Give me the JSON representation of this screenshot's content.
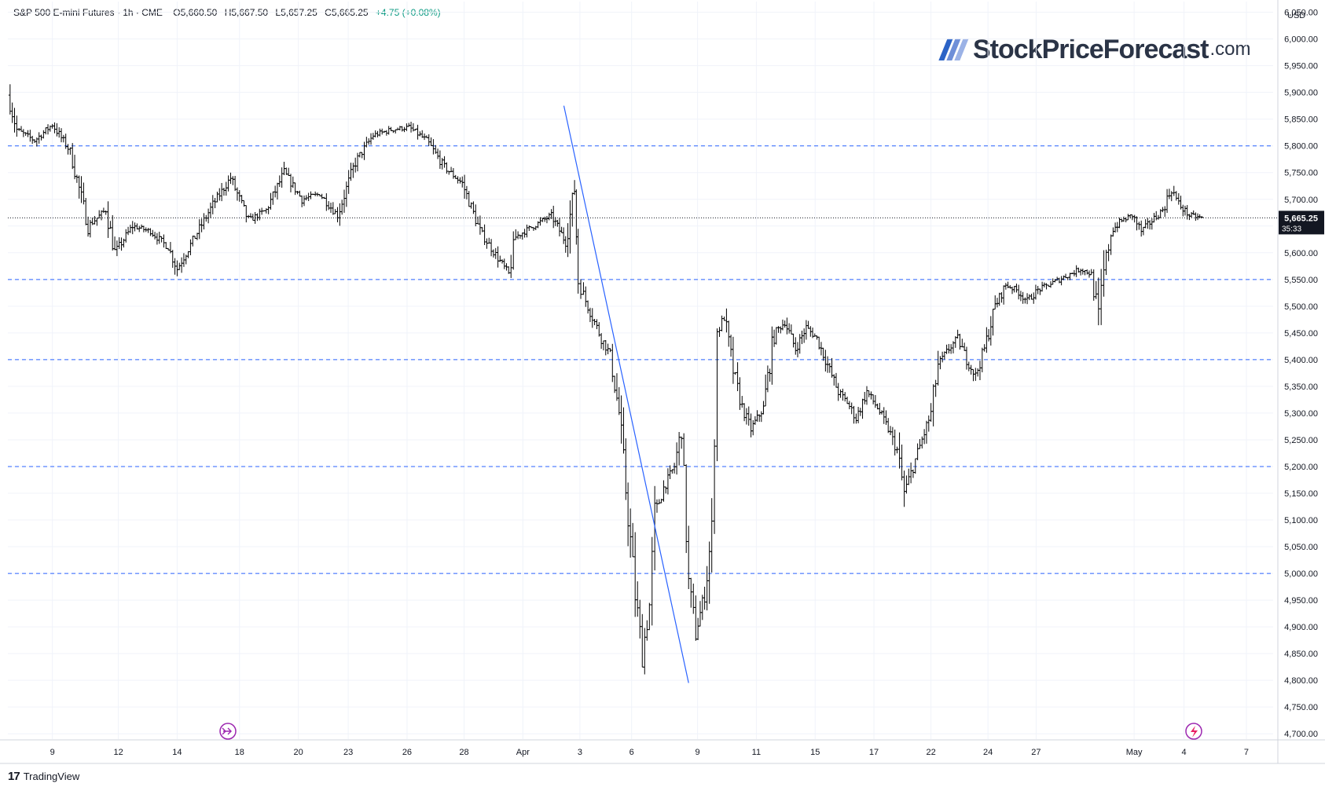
{
  "header": {
    "symbol": "S&P 500 E-mini Futures",
    "interval": "1h",
    "exchange": "CME",
    "open_label": "O",
    "open": "5,660.50",
    "high_label": "H",
    "high": "5,667.50",
    "low_label": "L",
    "low": "5,657.25",
    "close_label": "C",
    "close": "5,665.25",
    "change": "+4.75 (+0.08%)"
  },
  "brand": {
    "name": "StockPriceForecast",
    "tld": ".com",
    "colors": [
      "#2b63c6",
      "#6e8fd8",
      "#9bb2e6"
    ]
  },
  "footer": {
    "logo_mark": "17",
    "logo_text": "TradingView"
  },
  "chart_data": {
    "type": "candlestick",
    "currency": "USD",
    "ylim": [
      4690,
      6070
    ],
    "y_ticks": [
      6050,
      6000,
      5950,
      5900,
      5850,
      5800,
      5750,
      5700,
      5650,
      5600,
      5550,
      5500,
      5450,
      5400,
      5350,
      5300,
      5250,
      5200,
      5150,
      5100,
      5050,
      5000,
      4950,
      4900,
      4850,
      4800,
      4750,
      4700
    ],
    "y_tick_labels": [
      "6,050.00",
      "6,000.00",
      "5,950.00",
      "5,900.00",
      "5,850.00",
      "5,800.00",
      "5,750.00",
      "5,700.00",
      "5,650.00",
      "5,600.00",
      "5,550.00",
      "5,500.00",
      "5,450.00",
      "5,400.00",
      "5,350.00",
      "5,300.00",
      "5,250.00",
      "5,200.00",
      "5,150.00",
      "5,100.00",
      "5,050.00",
      "5,000.00",
      "4,950.00",
      "4,900.00",
      "4,850.00",
      "4,800.00",
      "4,750.00",
      "4,700.00"
    ],
    "x_session_range": [
      0,
      71
    ],
    "x_ticks": [
      {
        "label": "9",
        "pos": 2.5
      },
      {
        "label": "12",
        "pos": 6.2
      },
      {
        "label": "14",
        "pos": 9.5
      },
      {
        "label": "18",
        "pos": 13
      },
      {
        "label": "20",
        "pos": 16.3
      },
      {
        "label": "23",
        "pos": 19.1
      },
      {
        "label": "26",
        "pos": 22.4
      },
      {
        "label": "28",
        "pos": 25.6
      },
      {
        "label": "Apr",
        "pos": 28.9
      },
      {
        "label": "3",
        "pos": 32.1
      },
      {
        "label": "6",
        "pos": 35
      },
      {
        "label": "9",
        "pos": 38.7
      },
      {
        "label": "11",
        "pos": 42
      },
      {
        "label": "15",
        "pos": 45.3
      },
      {
        "label": "17",
        "pos": 48.6
      },
      {
        "label": "22",
        "pos": 51.8
      },
      {
        "label": "24",
        "pos": 55
      },
      {
        "label": "27",
        "pos": 57.7
      },
      {
        "label": "May",
        "pos": 63.2
      },
      {
        "label": "4",
        "pos": 66
      },
      {
        "label": "7",
        "pos": 69.5
      }
    ],
    "last_price": 5665.25,
    "last_price_label": "5,665.25",
    "countdown": "35:33",
    "horizontal_levels": [
      5800,
      5550,
      5400,
      5200,
      5000
    ],
    "trendline": {
      "start": {
        "x": 31.2,
        "y": 5875
      },
      "end": {
        "x": 38.2,
        "y": 4795
      }
    },
    "anchors": [
      [
        0,
        5895
      ],
      [
        0.5,
        5830
      ],
      [
        1.5,
        5810
      ],
      [
        2.5,
        5840
      ],
      [
        3.5,
        5790
      ],
      [
        4.5,
        5650
      ],
      [
        5.5,
        5680
      ],
      [
        6,
        5600
      ],
      [
        7,
        5650
      ],
      [
        8,
        5640
      ],
      [
        9,
        5610
      ],
      [
        9.5,
        5570
      ],
      [
        10.5,
        5630
      ],
      [
        11.5,
        5690
      ],
      [
        12.5,
        5740
      ],
      [
        13.5,
        5660
      ],
      [
        14.5,
        5680
      ],
      [
        15.5,
        5750
      ],
      [
        16.5,
        5700
      ],
      [
        17.5,
        5710
      ],
      [
        18.5,
        5670
      ],
      [
        19.5,
        5770
      ],
      [
        20.5,
        5820
      ],
      [
        21.5,
        5830
      ],
      [
        22.5,
        5835
      ],
      [
        23.5,
        5810
      ],
      [
        24.5,
        5760
      ],
      [
        25.5,
        5730
      ],
      [
        26.5,
        5640
      ],
      [
        27.5,
        5590
      ],
      [
        28.1,
        5560
      ],
      [
        28.5,
        5630
      ],
      [
        29.5,
        5650
      ],
      [
        30.5,
        5670
      ],
      [
        31.3,
        5620
      ],
      [
        31.8,
        5720
      ],
      [
        32.0,
        5550
      ],
      [
        32.3,
        5520
      ],
      [
        32.8,
        5480
      ],
      [
        33.3,
        5440
      ],
      [
        33.8,
        5410
      ],
      [
        34.3,
        5300
      ],
      [
        34.8,
        5110
      ],
      [
        35.2,
        4960
      ],
      [
        35.6,
        4850
      ],
      [
        36.0,
        4940
      ],
      [
        36.3,
        5110
      ],
      [
        36.8,
        5160
      ],
      [
        37.4,
        5200
      ],
      [
        37.8,
        5270
      ],
      [
        38.2,
        4980
      ],
      [
        38.6,
        4890
      ],
      [
        39.1,
        4960
      ],
      [
        39.5,
        5080
      ],
      [
        39.8,
        5450
      ],
      [
        40.2,
        5480
      ],
      [
        40.7,
        5380
      ],
      [
        41.2,
        5310
      ],
      [
        41.7,
        5270
      ],
      [
        42.4,
        5310
      ],
      [
        43.0,
        5450
      ],
      [
        43.6,
        5470
      ],
      [
        44.2,
        5420
      ],
      [
        44.8,
        5460
      ],
      [
        45.4,
        5440
      ],
      [
        46.0,
        5390
      ],
      [
        46.6,
        5340
      ],
      [
        47.1,
        5320
      ],
      [
        47.6,
        5290
      ],
      [
        48.2,
        5340
      ],
      [
        48.8,
        5310
      ],
      [
        49.4,
        5270
      ],
      [
        49.9,
        5230
      ],
      [
        50.3,
        5150
      ],
      [
        50.8,
        5200
      ],
      [
        51.3,
        5250
      ],
      [
        51.8,
        5300
      ],
      [
        52.2,
        5390
      ],
      [
        52.8,
        5420
      ],
      [
        53.3,
        5440
      ],
      [
        53.8,
        5400
      ],
      [
        54.3,
        5370
      ],
      [
        54.8,
        5420
      ],
      [
        55.4,
        5500
      ],
      [
        56.0,
        5540
      ],
      [
        56.6,
        5530
      ],
      [
        57.2,
        5510
      ],
      [
        57.8,
        5530
      ],
      [
        58.4,
        5540
      ],
      [
        59.0,
        5550
      ],
      [
        59.6,
        5560
      ],
      [
        60.2,
        5570
      ],
      [
        60.8,
        5560
      ],
      [
        61.2,
        5480
      ],
      [
        61.5,
        5560
      ],
      [
        61.9,
        5640
      ],
      [
        62.5,
        5660
      ],
      [
        63.1,
        5670
      ],
      [
        63.6,
        5640
      ],
      [
        64.2,
        5660
      ],
      [
        64.8,
        5680
      ],
      [
        65.3,
        5720
      ],
      [
        65.7,
        5690
      ],
      [
        66.3,
        5670
      ],
      [
        67.0,
        5665
      ]
    ]
  }
}
